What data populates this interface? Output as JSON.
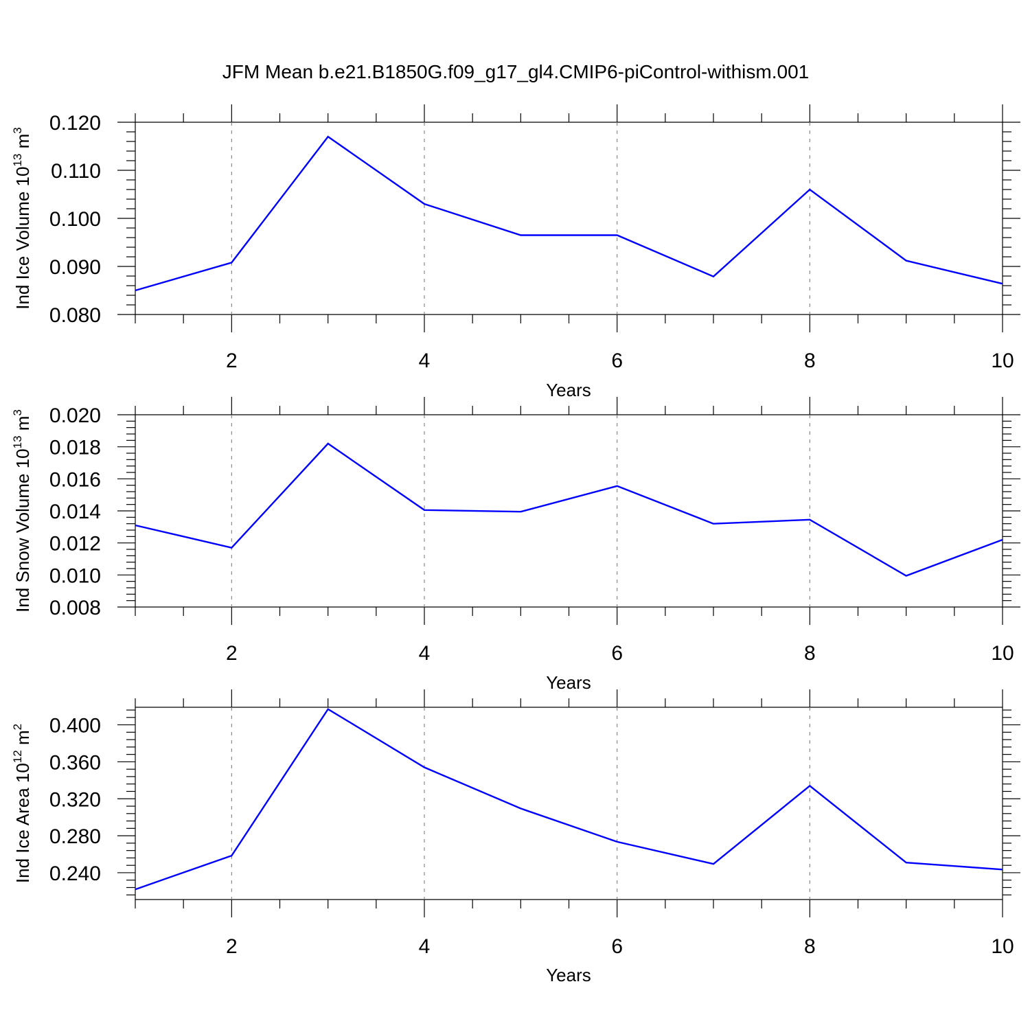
{
  "figure": {
    "title": "JFM Mean b.e21.B1850G.f09_g17_gl4.CMIP6-piControl-withism.001"
  },
  "chart_data": [
    {
      "type": "line",
      "ylabel": {
        "prefix": "Ind Ice Volume 10",
        "exp": "13",
        "unit": " m",
        "unit_exp": "3"
      },
      "xlabel": "Years",
      "x": [
        1,
        2,
        3,
        4,
        5,
        6,
        7,
        8,
        9,
        10
      ],
      "values": [
        0.085,
        0.0908,
        0.117,
        0.103,
        0.0965,
        0.0965,
        0.0879,
        0.106,
        0.0912,
        0.0864
      ],
      "xlim": [
        1,
        10
      ],
      "ylim": [
        0.08,
        0.12
      ],
      "yticks": [
        "0.080",
        "0.090",
        "0.100",
        "0.110",
        "0.120"
      ],
      "yticks_values": [
        0.08,
        0.09,
        0.1,
        0.11,
        0.12
      ],
      "xticks": [
        "2",
        "4",
        "6",
        "8",
        "10"
      ],
      "xticks_values": [
        2,
        4,
        6,
        8,
        10
      ],
      "line_color": "#0000ff",
      "grid": "vertical dashed at major x ticks"
    },
    {
      "type": "line",
      "ylabel": {
        "prefix": "Ind Snow Volume 10",
        "exp": "13",
        "unit": " m",
        "unit_exp": "3"
      },
      "xlabel": "Years",
      "x": [
        1,
        2,
        3,
        4,
        5,
        6,
        7,
        8,
        9,
        10
      ],
      "values": [
        0.0131,
        0.0117,
        0.0182,
        0.01405,
        0.01395,
        0.01555,
        0.0132,
        0.01345,
        0.00995,
        0.0122
      ],
      "xlim": [
        1,
        10
      ],
      "ylim": [
        0.008,
        0.02
      ],
      "yticks": [
        "0.008",
        "0.010",
        "0.012",
        "0.014",
        "0.016",
        "0.018",
        "0.020"
      ],
      "yticks_values": [
        0.008,
        0.01,
        0.012,
        0.014,
        0.016,
        0.018,
        0.02
      ],
      "xticks": [
        "2",
        "4",
        "6",
        "8",
        "10"
      ],
      "xticks_values": [
        2,
        4,
        6,
        8,
        10
      ],
      "line_color": "#0000ff",
      "grid": "vertical dashed at major x ticks"
    },
    {
      "type": "line",
      "ylabel": {
        "prefix": "Ind Ice Area 10",
        "exp": "12",
        "unit": " m",
        "unit_exp": "2"
      },
      "xlabel": "Years",
      "x": [
        1,
        2,
        3,
        4,
        5,
        6,
        7,
        8,
        9,
        10
      ],
      "values": [
        0.222,
        0.2585,
        0.417,
        0.354,
        0.3095,
        0.2735,
        0.2495,
        0.334,
        0.251,
        0.2435
      ],
      "xlim": [
        1,
        10
      ],
      "ylim": [
        0.211,
        0.419
      ],
      "yticks": [
        "0.240",
        "0.280",
        "0.320",
        "0.360",
        "0.400"
      ],
      "yticks_values": [
        0.24,
        0.28,
        0.32,
        0.36,
        0.4
      ],
      "xticks": [
        "2",
        "4",
        "6",
        "8",
        "10"
      ],
      "xticks_values": [
        2,
        4,
        6,
        8,
        10
      ],
      "line_color": "#0000ff",
      "grid": "vertical dashed at major x ticks"
    }
  ]
}
